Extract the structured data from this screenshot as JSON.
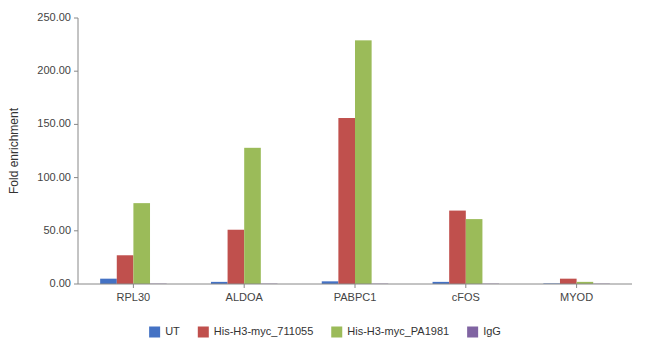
{
  "chart_data": {
    "type": "bar",
    "ylabel": "Fold enrichment",
    "categories": [
      "RPL30",
      "ALDOA",
      "PABPC1",
      "cFOS",
      "MYOD"
    ],
    "series": [
      {
        "name": "UT",
        "color": "#4472c4",
        "values": [
          5.0,
          2.0,
          2.5,
          2.0,
          0.5
        ]
      },
      {
        "name": "His-H3-myc_711055",
        "color": "#c0504d",
        "values": [
          27.0,
          51.0,
          156.0,
          69.0,
          5.0
        ]
      },
      {
        "name": "His-H3-myc_PA1981",
        "color": "#9bbb59",
        "values": [
          76.0,
          128.0,
          229.0,
          61.0,
          2.0
        ]
      },
      {
        "name": "IgG",
        "color": "#8064a2",
        "values": [
          0.3,
          0.3,
          0.3,
          0.3,
          0.3
        ]
      }
    ],
    "ylim": [
      0,
      250
    ],
    "yticks": [
      {
        "value": 0,
        "label": "0.00"
      },
      {
        "value": 50,
        "label": "50.00"
      },
      {
        "value": 100,
        "label": "100.00"
      },
      {
        "value": 150,
        "label": "150.00"
      },
      {
        "value": 200,
        "label": "200.00"
      },
      {
        "value": 250,
        "label": "250.00"
      }
    ],
    "grid": false,
    "legend": "bottom"
  }
}
